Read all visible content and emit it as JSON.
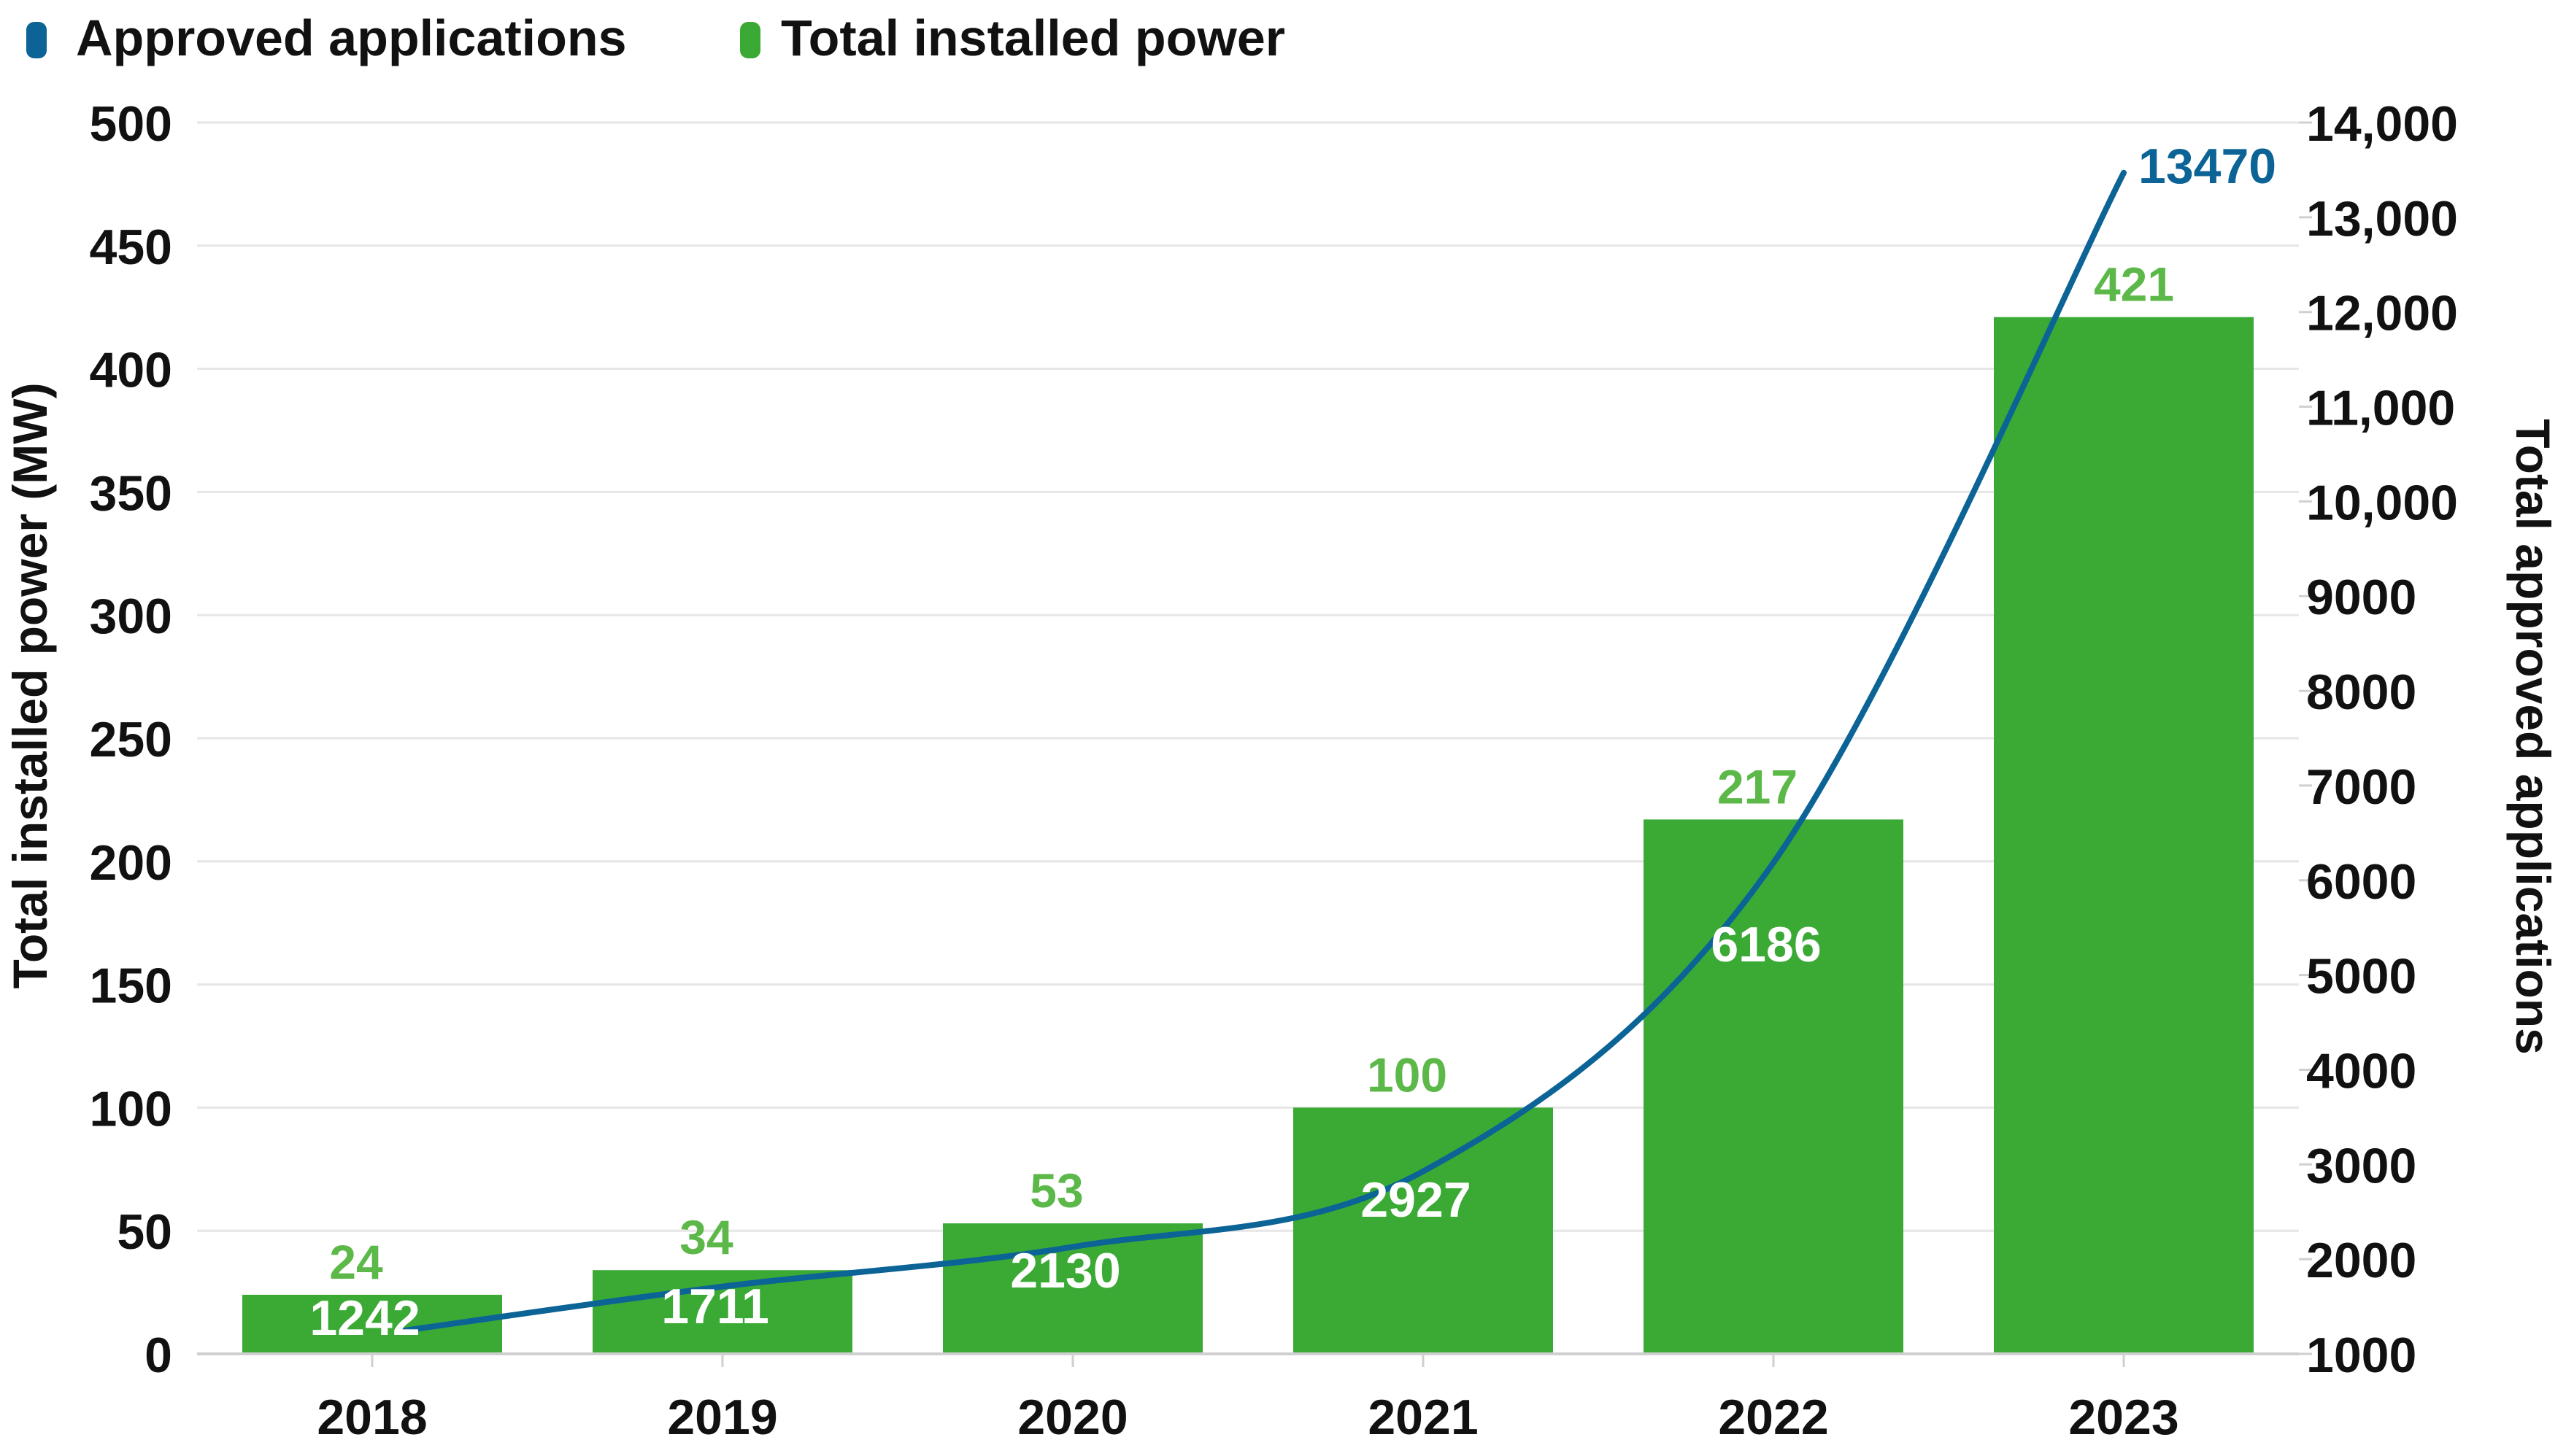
{
  "chart_data": {
    "type": "bar",
    "categories": [
      "2018",
      "2019",
      "2020",
      "2021",
      "2022",
      "2023"
    ],
    "series": [
      {
        "name": "Total installed power",
        "type": "bar",
        "axis": "left",
        "values": [
          24,
          34,
          53,
          100,
          217,
          421
        ],
        "labels": [
          "24",
          "34",
          "53",
          "100",
          "217",
          "421"
        ],
        "color": "#3aaa35",
        "label_color": "#5cb848"
      },
      {
        "name": "Approved applications",
        "type": "line",
        "axis": "right",
        "values": [
          1242,
          1711,
          2130,
          2927,
          6186,
          13470
        ],
        "labels": [
          "1242",
          "1711",
          "2130",
          "2927",
          "6186",
          "13470"
        ],
        "color": "#0b6396",
        "inner_label_color": "#ffffff"
      }
    ],
    "ylabel": "Total installed power (MW)",
    "y2label": "Total approved applications",
    "ylim": [
      0,
      500
    ],
    "y2lim": [
      1000,
      14000
    ],
    "yticks": [
      0,
      50,
      100,
      150,
      200,
      250,
      300,
      350,
      400,
      450,
      500
    ],
    "ytick_labels": [
      "0",
      "50",
      "100",
      "150",
      "200",
      "250",
      "300",
      "350",
      "400",
      "450",
      "500"
    ],
    "y2ticks": [
      1000,
      2000,
      3000,
      4000,
      5000,
      6000,
      7000,
      8000,
      9000,
      10000,
      11000,
      12000,
      13000,
      14000
    ],
    "y2tick_labels": [
      "1000",
      "2000",
      "3000",
      "4000",
      "5000",
      "6000",
      "7000",
      "8000",
      "9000",
      "10,000",
      "11,000",
      "12,000",
      "13,000",
      "14,000"
    ],
    "legend": [
      {
        "label": "Approved applications",
        "color": "#0b6396"
      },
      {
        "label": "Total installed power",
        "color": "#3aaa35"
      }
    ],
    "legend_position": "top-left",
    "grid": true,
    "grid_color": "#e6e6e6",
    "axis_text_color": "#111111"
  }
}
